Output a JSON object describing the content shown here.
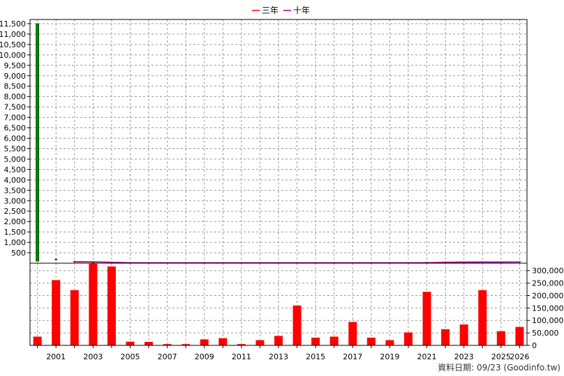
{
  "colors": {
    "three_year": "#ff0000",
    "ten_year": "#990099",
    "price_bar": "#008000",
    "volume_bar": "#ff0000",
    "grid": "#999999"
  },
  "footer": {
    "text": "資料日期: 09/23  (Goodinfo.tw)"
  },
  "chart_data": [
    {
      "type": "line",
      "legend": [
        "三年",
        "十年"
      ],
      "legend_placement": "top-center",
      "grid": true,
      "ylim": [
        0,
        11700
      ],
      "yticks": [
        "500",
        "1,000",
        "1,500",
        "2,000",
        "2,500",
        "3,000",
        "3,500",
        "4,000",
        "4,500",
        "5,000",
        "5,500",
        "6,000",
        "6,500",
        "7,000",
        "7,500",
        "8,000",
        "8,500",
        "9,000",
        "9,500",
        "10,000",
        "10,500",
        "11,000",
        "11,500"
      ],
      "xlim": [
        1999.6,
        2026.4
      ],
      "price_bars": [
        {
          "x": 2000,
          "low": 100,
          "high": 11500
        },
        {
          "x": 2001,
          "low": 130,
          "high": 230
        },
        {
          "x": 2002,
          "low": 40,
          "high": 110
        },
        {
          "x": 2003,
          "low": 20,
          "high": 60
        },
        {
          "x": 2004,
          "low": 15,
          "high": 50
        },
        {
          "x": 2005,
          "low": 10,
          "high": 30
        },
        {
          "x": 2006,
          "low": 10,
          "high": 30
        },
        {
          "x": 2007,
          "low": 10,
          "high": 30
        },
        {
          "x": 2008,
          "low": 10,
          "high": 30
        },
        {
          "x": 2009,
          "low": 10,
          "high": 40
        },
        {
          "x": 2010,
          "low": 10,
          "high": 30
        },
        {
          "x": 2011,
          "low": 10,
          "high": 30
        },
        {
          "x": 2012,
          "low": 10,
          "high": 30
        },
        {
          "x": 2013,
          "low": 10,
          "high": 30
        },
        {
          "x": 2014,
          "low": 10,
          "high": 30
        },
        {
          "x": 2015,
          "low": 10,
          "high": 30
        },
        {
          "x": 2016,
          "low": 10,
          "high": 30
        },
        {
          "x": 2017,
          "low": 10,
          "high": 30
        },
        {
          "x": 2018,
          "low": 10,
          "high": 30
        },
        {
          "x": 2019,
          "low": 10,
          "high": 30
        },
        {
          "x": 2020,
          "low": 10,
          "high": 30
        },
        {
          "x": 2021,
          "low": 20,
          "high": 60
        },
        {
          "x": 2022,
          "low": 30,
          "high": 80
        },
        {
          "x": 2023,
          "low": 30,
          "high": 80
        },
        {
          "x": 2024,
          "low": 40,
          "high": 90
        },
        {
          "x": 2025,
          "low": 30,
          "high": 80
        },
        {
          "x": 2026,
          "low": 40,
          "high": 90
        }
      ],
      "series": [
        {
          "name": "三年",
          "x": [
            2002,
            2003,
            2004,
            2005,
            2006,
            2007,
            2008,
            2009,
            2010,
            2011,
            2012,
            2013,
            2014,
            2015,
            2016,
            2017,
            2018,
            2019,
            2020,
            2021,
            2022,
            2023,
            2024,
            2025,
            2026
          ],
          "values": [
            60,
            60,
            40,
            20,
            20,
            20,
            20,
            20,
            20,
            20,
            20,
            20,
            20,
            20,
            20,
            20,
            20,
            20,
            20,
            30,
            50,
            60,
            60,
            60,
            60
          ]
        },
        {
          "name": "十年",
          "x": [
            2002,
            2003,
            2004,
            2005,
            2006,
            2007,
            2008,
            2009,
            2010,
            2011,
            2012,
            2013,
            2014,
            2015,
            2016,
            2017,
            2018,
            2019,
            2020,
            2021,
            2022,
            2023,
            2024,
            2025,
            2026
          ],
          "values": [
            80,
            70,
            50,
            30,
            25,
            22,
            22,
            22,
            22,
            22,
            22,
            22,
            22,
            22,
            22,
            22,
            22,
            22,
            22,
            25,
            35,
            40,
            45,
            45,
            50
          ]
        }
      ]
    },
    {
      "type": "bar",
      "grid": true,
      "ylim": [
        0,
        330000
      ],
      "yticks": [
        "0",
        "50,000",
        "100,000",
        "150,000",
        "200,000",
        "250,000",
        "300,000"
      ],
      "x": [
        2000,
        2001,
        2002,
        2003,
        2004,
        2005,
        2006,
        2007,
        2008,
        2009,
        2010,
        2011,
        2012,
        2013,
        2014,
        2015,
        2016,
        2017,
        2018,
        2019,
        2020,
        2021,
        2022,
        2023,
        2024,
        2025,
        2026
      ],
      "xticks": [
        "2001",
        "2003",
        "2005",
        "2007",
        "2009",
        "2011",
        "2013",
        "2015",
        "2017",
        "2019",
        "2021",
        "2023",
        "2025",
        "2026"
      ],
      "values": [
        35000,
        262000,
        222000,
        328000,
        317000,
        15000,
        14000,
        5000,
        5000,
        24000,
        29000,
        5000,
        21000,
        38000,
        160000,
        31000,
        35000,
        94000,
        31000,
        21000,
        52000,
        215000,
        65000,
        84000,
        222000,
        57000,
        74000
      ]
    }
  ]
}
